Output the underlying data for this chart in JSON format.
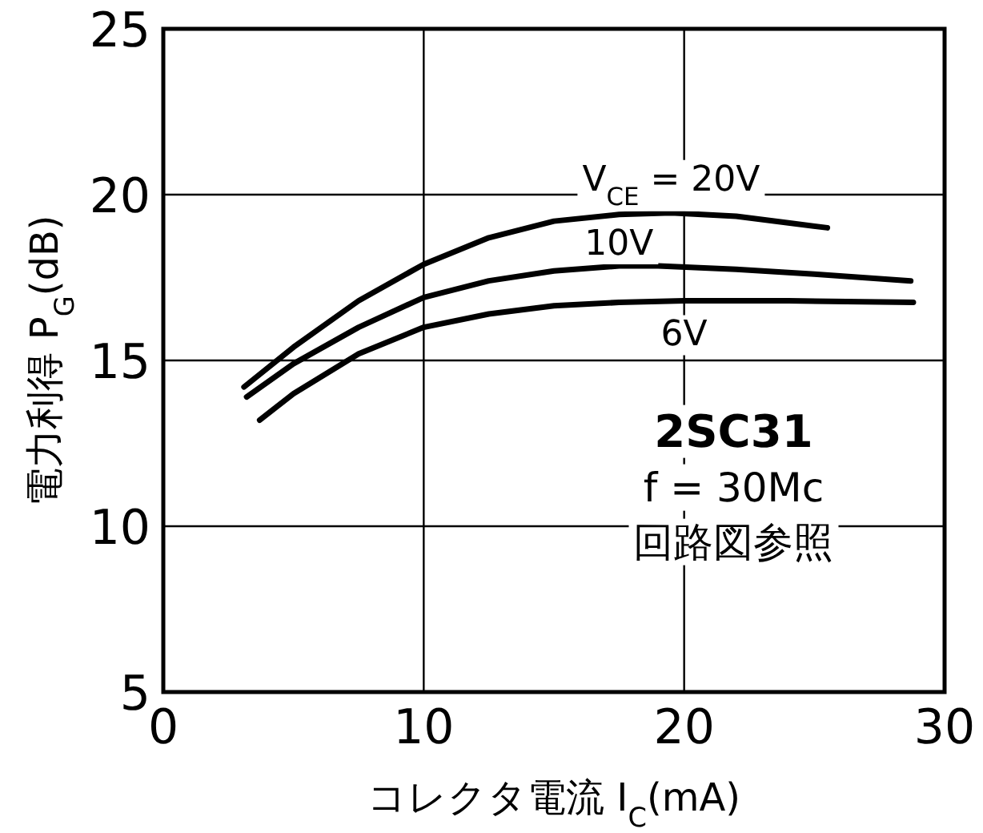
{
  "chart_data": {
    "type": "line",
    "xlabel": "コレクタ電流 I$_{C}$(mA)",
    "ylabel": "電力利得 P$_{G}$(dB)",
    "xlim": [
      0,
      30
    ],
    "ylim": [
      5,
      25
    ],
    "xticks": [
      0,
      10,
      20,
      30
    ],
    "yticks": [
      5,
      10,
      15,
      20,
      25
    ],
    "grid": true,
    "legend": false,
    "marker": "none",
    "line_style": "solid",
    "series": [
      {
        "name": "V$_{CE}$ = 20V",
        "color": "#000000",
        "x": [
          3.1,
          5,
          7.5,
          10,
          12.5,
          15,
          17.5,
          19.5,
          22,
          24,
          25.5
        ],
        "values": [
          14.2,
          15.4,
          16.8,
          17.9,
          18.7,
          19.2,
          19.4,
          19.45,
          19.35,
          19.15,
          19.0
        ]
      },
      {
        "name": "10V",
        "color": "#000000",
        "x": [
          3.2,
          5,
          7.5,
          10,
          12.5,
          15,
          17.5,
          19,
          22,
          25,
          28.7
        ],
        "values": [
          13.9,
          14.9,
          16.0,
          16.9,
          17.4,
          17.7,
          17.85,
          17.85,
          17.75,
          17.6,
          17.4
        ]
      },
      {
        "name": "6V",
        "color": "#000000",
        "x": [
          3.7,
          5,
          7.5,
          10,
          12.5,
          15,
          17.5,
          20,
          24,
          28.8
        ],
        "values": [
          13.2,
          14.0,
          15.2,
          16.0,
          16.4,
          16.65,
          16.75,
          16.8,
          16.8,
          16.75
        ]
      }
    ],
    "annotations": [
      "2SC31",
      "f = 30Mc",
      "回路図参照"
    ]
  }
}
